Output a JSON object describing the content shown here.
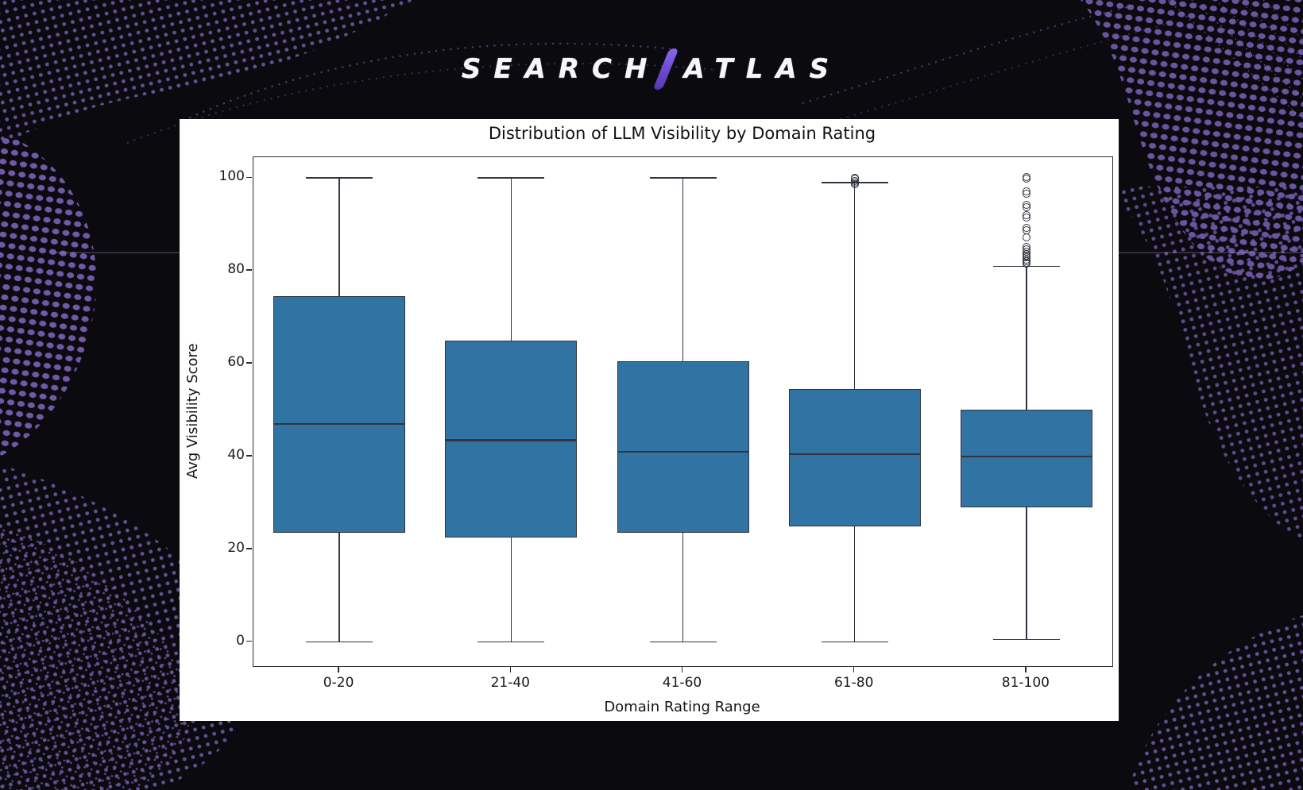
{
  "logo": {
    "left_word": "SEARCH",
    "right_word": "ATLAS",
    "slash_color": "#6b4ad0",
    "text_color": "#f7f6fa"
  },
  "background": {
    "base_color": "#0b0a0e",
    "pattern_color": "#6d57a6",
    "pattern_style": "halftone-dot-waves"
  },
  "chart_data": {
    "type": "boxplot",
    "title": "Distribution of LLM Visibility by Domain Rating",
    "xlabel": "Domain Rating Range",
    "ylabel": "Avg Visibility Score",
    "categories": [
      "0-20",
      "21-40",
      "41-60",
      "61-80",
      "81-100"
    ],
    "yticks": [
      0,
      20,
      40,
      60,
      80,
      100
    ],
    "ylim": [
      -5.2,
      104.5
    ],
    "grid": false,
    "legend": "none",
    "box_color": "#3173A2",
    "line_color": "#30353f",
    "series": [
      {
        "category": "0-20",
        "whisker_low": 0,
        "q1": 23.5,
        "median": 47,
        "q3": 74.5,
        "whisker_high": 100,
        "outliers": []
      },
      {
        "category": "21-40",
        "whisker_low": 0,
        "q1": 22.5,
        "median": 43.5,
        "q3": 65,
        "whisker_high": 100,
        "outliers": []
      },
      {
        "category": "41-60",
        "whisker_low": 0,
        "q1": 23.5,
        "median": 41,
        "q3": 60.5,
        "whisker_high": 100,
        "outliers": []
      },
      {
        "category": "61-80",
        "whisker_low": 0,
        "q1": 25,
        "median": 40.5,
        "q3": 54.5,
        "whisker_high": 99,
        "outliers": [
          98.6,
          99,
          99.4,
          99.8,
          100.1
        ]
      },
      {
        "category": "81-100",
        "whisker_low": 0.5,
        "q1": 29,
        "median": 40,
        "q3": 50,
        "whisker_high": 81,
        "outliers": [
          100.2,
          99.8,
          97.2,
          96.7,
          94.2,
          93.8,
          92,
          91.5,
          89.3,
          88.8,
          87.2,
          85.2,
          84.7,
          84.2,
          83.7,
          83.3,
          82.9,
          82.5,
          82.1,
          81.8,
          81.5
        ]
      }
    ]
  }
}
